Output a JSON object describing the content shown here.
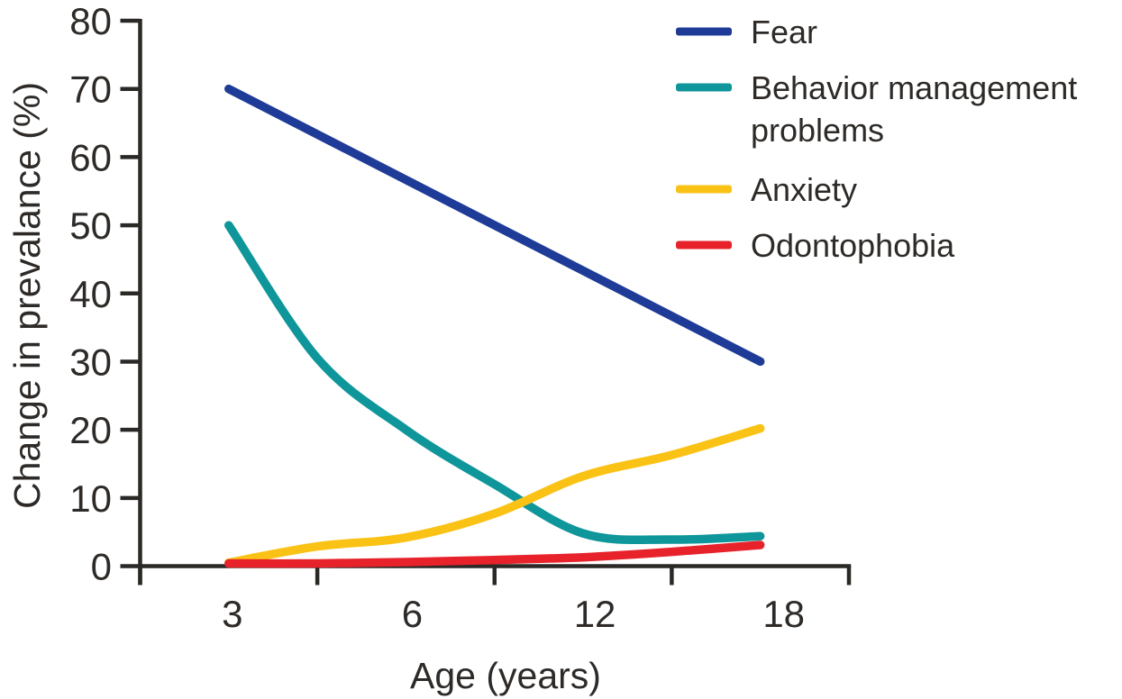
{
  "figure": {
    "background": "#ffffff"
  },
  "chart_data": {
    "type": "line",
    "title": "",
    "xlabel": "Age (years)",
    "ylabel": "Change in prevalance (%)",
    "grid": false,
    "legend_position": "top-right",
    "x_axis": {
      "scale": "ordinal-even-spacing",
      "categories": [
        "3",
        "6",
        "12",
        "18"
      ],
      "tick_style": "boundary ticks with labels centered in intervals"
    },
    "y_axis": {
      "min": 0,
      "max": 80,
      "step": 10,
      "tick_labels": [
        "80",
        "70",
        "60",
        "50",
        "40",
        "30",
        "20",
        "10",
        "0"
      ]
    },
    "series": [
      {
        "name": "Fear",
        "legend_lines": [
          "Fear"
        ],
        "color": "#1e3b97",
        "values_at_categories": [
          70,
          57,
          44,
          30
        ],
        "points": [
          [
            3,
            70
          ],
          [
            18,
            30
          ]
        ]
      },
      {
        "name": "Behavior management problems",
        "legend_lines": [
          "Behavior management",
          "problems"
        ],
        "color": "#0e969a",
        "values_at_categories": [
          50,
          20,
          5,
          4
        ],
        "points": [
          [
            3,
            50
          ],
          [
            4.5,
            30.5
          ],
          [
            6,
            20
          ],
          [
            9,
            12
          ],
          [
            12,
            4.8
          ],
          [
            15,
            3.9
          ],
          [
            18,
            4.4
          ]
        ]
      },
      {
        "name": "Anxiety",
        "legend_lines": [
          "Anxiety"
        ],
        "color": "#fac214",
        "values_at_categories": [
          0,
          4,
          13,
          20
        ],
        "points": [
          [
            3,
            0.5
          ],
          [
            4.5,
            2.9
          ],
          [
            6,
            4.2
          ],
          [
            9,
            7.7
          ],
          [
            12,
            13.2
          ],
          [
            15,
            16.3
          ],
          [
            18,
            20.2
          ]
        ]
      },
      {
        "name": "Odontophobia",
        "legend_lines": [
          "Odontophobia"
        ],
        "color": "#e7222a",
        "values_at_categories": [
          0,
          1,
          1,
          3
        ],
        "points": [
          [
            3,
            0.4
          ],
          [
            4.5,
            0.4
          ],
          [
            6,
            0.6
          ],
          [
            9,
            0.9
          ],
          [
            12,
            1.3
          ],
          [
            15,
            2.1
          ],
          [
            18,
            3.1
          ]
        ]
      }
    ],
    "colors": {
      "axis": "#2b2926",
      "text": "#2d2a27"
    }
  }
}
